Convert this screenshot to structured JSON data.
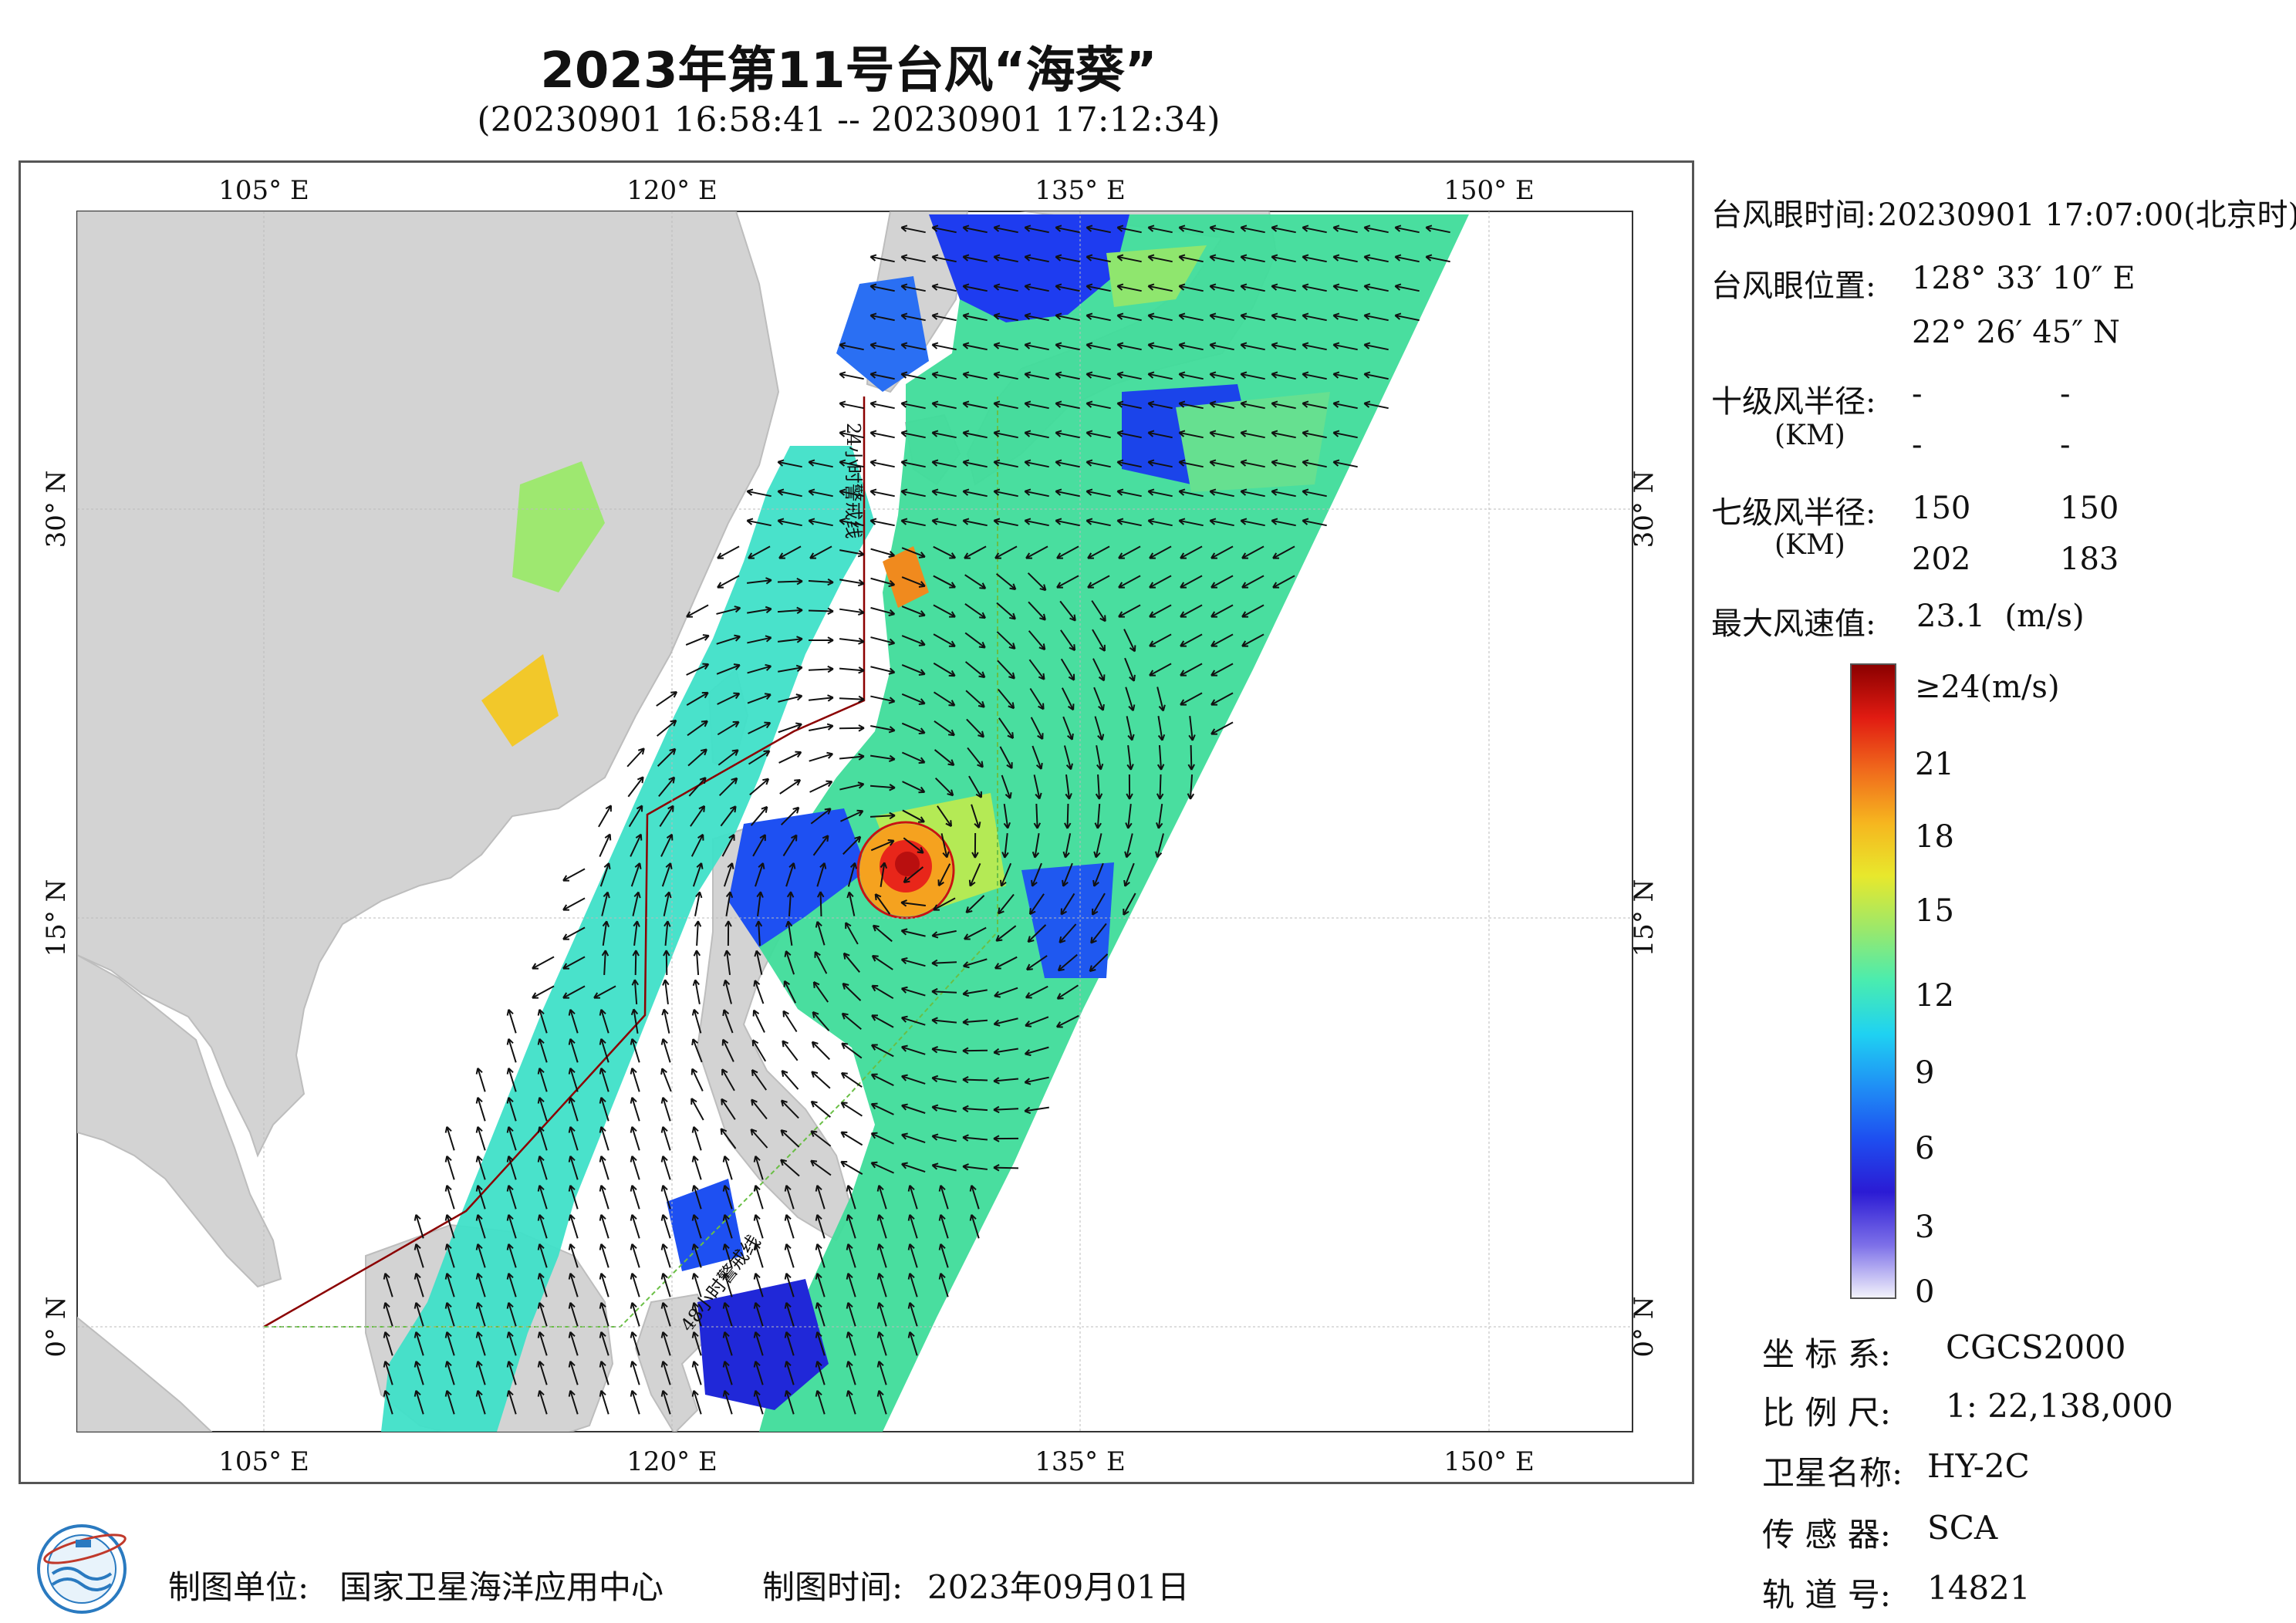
{
  "header": {
    "title": "2023年第11号台风“海葵”",
    "subtitle": "(20230901 16:58:41 -- 20230901 17:12:34)"
  },
  "map": {
    "top_lon_labels": [
      "105° E",
      "120° E",
      "135° E",
      "150° E"
    ],
    "bottom_lon_labels": [
      "105° E",
      "120° E",
      "135° E",
      "150° E"
    ],
    "lat_labels": [
      "30° N",
      "15° N",
      "0° N"
    ],
    "track_labels": [
      "24小时警戒线",
      "48小时警戒线"
    ],
    "colors": {
      "land": "#d3d3d3",
      "ocean": "#ffffff",
      "track_line": "#8b0000",
      "warning_line_24": "#8b0000",
      "warning_line_48": "#6abf45"
    }
  },
  "typhoon_info": {
    "eye_time_label": "台风眼时间:",
    "eye_time_value": "20230901 17:07:00(北京时)",
    "eye_pos_label": "台风眼位置:",
    "eye_lon": "128° 33′ 10″ E",
    "eye_lat": "22° 26′ 45″ N",
    "r10_label": "十级风半径:",
    "r10_unit": "(KM)",
    "r10_values": [
      "-",
      "-",
      "-",
      "-"
    ],
    "r7_label": "七级风半径:",
    "r7_unit": "(KM)",
    "r7_values": [
      "150",
      "150",
      "202",
      "183"
    ],
    "max_wind_label": "最大风速值:",
    "max_wind_value": "23.1  (m/s)"
  },
  "colorbar": {
    "labels": [
      "≥24(m/s)",
      "21",
      "18",
      "15",
      "12",
      "9",
      "6",
      "3",
      "0"
    ],
    "stops": [
      "#f2f2fb",
      "#7c6fe8",
      "#2b1bd4",
      "#1e4ef0",
      "#1f8ff5",
      "#1fd2f2",
      "#49ecb0",
      "#9ce86a",
      "#e8e82c",
      "#f6b61f",
      "#f06a1c",
      "#e11b12",
      "#8b0000"
    ]
  },
  "metadata": {
    "crs_label": "坐 标 系:",
    "crs_value": "CGCS2000",
    "scale_label": "比 例 尺:",
    "scale_value": "1: 22,138,000",
    "satellite_label": "卫星名称:",
    "satellite_value": "HY-2C",
    "sensor_label": "传 感 器:",
    "sensor_value": "SCA",
    "orbit_label": "轨 道 号:",
    "orbit_value": "14821"
  },
  "footer": {
    "maker_label": "制图单位:",
    "maker_value": "国家卫星海洋应用中心",
    "date_label": "制图时间:",
    "date_value": "2023年09月01日"
  }
}
